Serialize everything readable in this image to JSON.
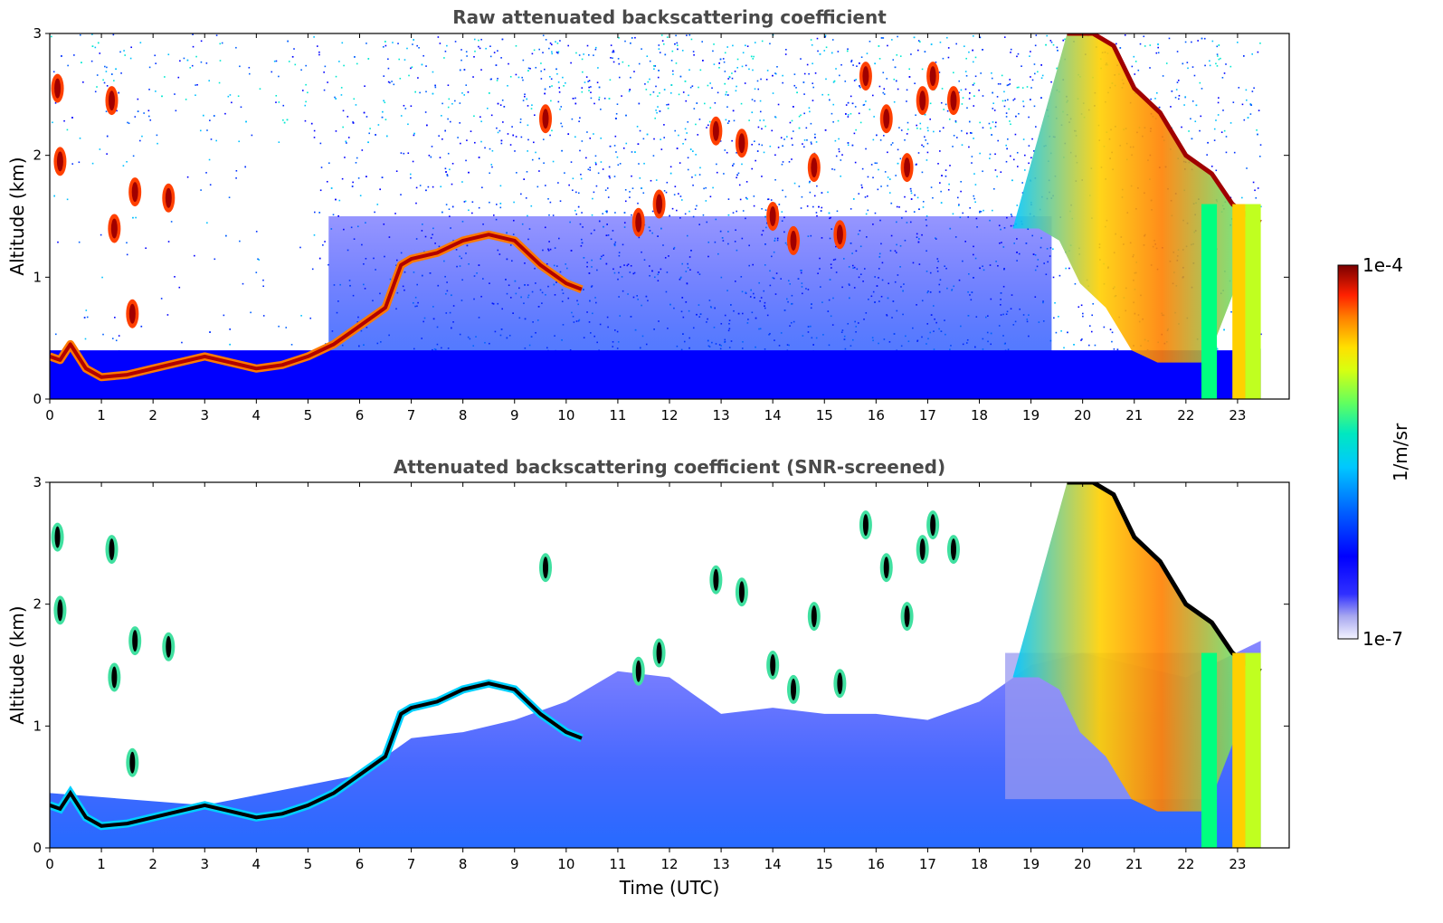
{
  "chart_data": [
    {
      "type": "heatmap",
      "title": "Raw attenuated backscattering coefficient",
      "xlabel": "",
      "ylabel": "Altitude (km)",
      "xlim": [
        0,
        24
      ],
      "ylim": [
        0,
        3
      ],
      "x_ticks": [
        "0",
        "1",
        "2",
        "3",
        "4",
        "5",
        "6",
        "7",
        "8",
        "9",
        "10",
        "11",
        "12",
        "13",
        "14",
        "15",
        "16",
        "17",
        "18",
        "19",
        "20",
        "21",
        "22",
        "23"
      ],
      "y_ticks": [
        "0",
        "1",
        "2",
        "3"
      ],
      "data_end_time": 23.45,
      "screened": false,
      "layer_tops_km": {
        "x": [
          0,
          0.2,
          0.4,
          0.7,
          1.0,
          1.5,
          2.0,
          2.5,
          3.0,
          3.5,
          4.0,
          4.5,
          5.0,
          5.5,
          6.0,
          6.5,
          6.8,
          7.0,
          7.5,
          8.0,
          8.5,
          9.0,
          9.5,
          10.0,
          10.3
        ],
        "y": [
          0.35,
          0.32,
          0.45,
          0.25,
          0.18,
          0.2,
          0.25,
          0.3,
          0.35,
          0.3,
          0.25,
          0.28,
          0.35,
          0.45,
          0.6,
          0.75,
          1.1,
          1.15,
          1.2,
          1.3,
          1.35,
          1.3,
          1.1,
          0.95,
          0.9
        ]
      },
      "elevated_clouds": [
        {
          "t": 0.15,
          "z": 2.55
        },
        {
          "t": 0.2,
          "z": 1.95
        },
        {
          "t": 1.2,
          "z": 2.45
        },
        {
          "t": 1.25,
          "z": 1.4
        },
        {
          "t": 1.65,
          "z": 1.7
        },
        {
          "t": 2.3,
          "z": 1.65
        },
        {
          "t": 1.6,
          "z": 0.7
        },
        {
          "t": 9.6,
          "z": 2.3
        },
        {
          "t": 11.4,
          "z": 1.45
        },
        {
          "t": 11.8,
          "z": 1.6
        },
        {
          "t": 12.9,
          "z": 2.2
        },
        {
          "t": 13.4,
          "z": 2.1
        },
        {
          "t": 14.0,
          "z": 1.5
        },
        {
          "t": 14.4,
          "z": 1.3
        },
        {
          "t": 14.8,
          "z": 1.9
        },
        {
          "t": 15.3,
          "z": 1.35
        },
        {
          "t": 15.8,
          "z": 2.65
        },
        {
          "t": 16.2,
          "z": 2.3
        },
        {
          "t": 16.6,
          "z": 1.9
        },
        {
          "t": 16.9,
          "z": 2.45
        },
        {
          "t": 17.1,
          "z": 2.65
        },
        {
          "t": 17.5,
          "z": 2.45
        }
      ],
      "cirrus_descent_km": {
        "x": [
          19.7,
          20.2,
          20.6,
          21.0,
          21.5,
          22.0,
          22.5,
          22.9,
          23.2,
          23.45
        ],
        "y": [
          3.0,
          3.0,
          2.9,
          2.55,
          2.35,
          2.0,
          1.85,
          1.6,
          1.5,
          1.45
        ]
      }
    },
    {
      "type": "heatmap",
      "title": "Attenuated backscattering coefficient (SNR-screened)",
      "xlabel": "Time (UTC)",
      "ylabel": "Altitude (km)",
      "xlim": [
        0,
        24
      ],
      "ylim": [
        0,
        3
      ],
      "x_ticks": [
        "0",
        "1",
        "2",
        "3",
        "4",
        "5",
        "6",
        "7",
        "8",
        "9",
        "10",
        "11",
        "12",
        "13",
        "14",
        "15",
        "16",
        "17",
        "18",
        "19",
        "20",
        "21",
        "22",
        "23"
      ],
      "y_ticks": [
        "0",
        "1",
        "2",
        "3"
      ],
      "data_end_time": 23.45,
      "screened": true,
      "boundary_layer_top_km": {
        "x": [
          0,
          3,
          6,
          7,
          8,
          9,
          10,
          11,
          12,
          13,
          14,
          15,
          16,
          17,
          18,
          19,
          20,
          21,
          22
        ],
        "y": [
          0.45,
          0.35,
          0.6,
          0.9,
          0.95,
          1.05,
          1.2,
          1.45,
          1.4,
          1.1,
          1.15,
          1.1,
          1.1,
          1.05,
          1.2,
          1.5,
          1.6,
          1.5,
          1.4
        ]
      }
    }
  ],
  "colorbar": {
    "label": "1/m/sr",
    "min_label": "1e-7",
    "max_label": "1e-4",
    "colors": [
      "#e8e8f8",
      "#b0b0f0",
      "#7070ff",
      "#0000ff",
      "#0050ff",
      "#00a0ff",
      "#00e0e0",
      "#40ff80",
      "#c0ff20",
      "#ffe000",
      "#ff9000",
      "#ff2000",
      "#c00000",
      "#800000"
    ]
  }
}
